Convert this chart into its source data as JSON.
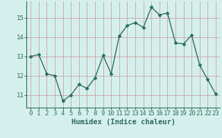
{
  "x": [
    0,
    1,
    2,
    3,
    4,
    5,
    6,
    7,
    8,
    9,
    10,
    11,
    12,
    13,
    14,
    15,
    16,
    17,
    18,
    19,
    20,
    21,
    22,
    23
  ],
  "y": [
    13.0,
    13.1,
    12.1,
    12.0,
    10.7,
    11.0,
    11.55,
    11.35,
    11.9,
    13.05,
    12.1,
    14.05,
    14.6,
    14.75,
    14.5,
    15.55,
    15.15,
    15.25,
    13.7,
    13.65,
    14.1,
    12.55,
    11.8,
    11.05
  ],
  "line_color": "#2e6b5e",
  "marker": "D",
  "marker_size": 2.5,
  "bg_color": "#d5f0ec",
  "grid_color": "#c8a0a0",
  "xlabel": "Humidex (Indice chaleur)",
  "ylim": [
    10.35,
    15.85
  ],
  "yticks": [
    11,
    12,
    13,
    14,
    15
  ],
  "xticks": [
    0,
    1,
    2,
    3,
    4,
    5,
    6,
    7,
    8,
    9,
    10,
    11,
    12,
    13,
    14,
    15,
    16,
    17,
    18,
    19,
    20,
    21,
    22,
    23
  ],
  "tick_fontsize": 6.5,
  "xlabel_fontsize": 7.5,
  "line_width": 1.0,
  "text_color": "#2e6b5e"
}
